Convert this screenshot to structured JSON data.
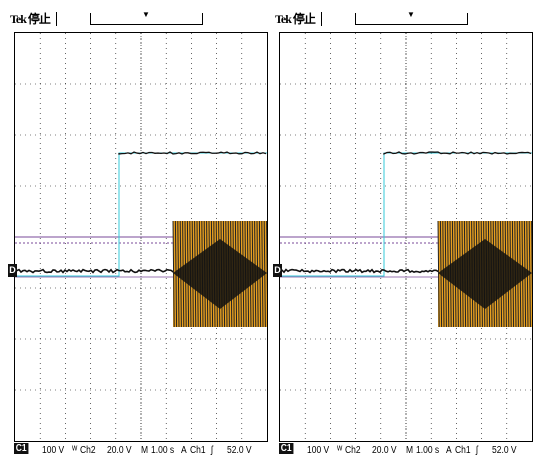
{
  "scopes": [
    {
      "brand": "Tek 停止",
      "channel_tag": "C1",
      "ch1_scale": "100 V",
      "ch2_label": "Ch2",
      "ch2_scale": "20.0 V",
      "timebase_label": "M",
      "timebase": "1.00 s",
      "trigger_src_label": "A",
      "trigger_channel": "Ch1",
      "trigger_slope": "ʃ",
      "trigger_level": "52.0 V",
      "ground_marker": "D"
    },
    {
      "brand": "Tek 停止",
      "channel_tag": "C1",
      "ch1_scale": "100 V",
      "ch2_label": "Ch2",
      "ch2_scale": "20.0 V",
      "timebase_label": "M",
      "timebase": "1.00 s",
      "trigger_src_label": "A",
      "trigger_channel": "Ch1",
      "trigger_slope": "ʃ",
      "trigger_level": "52.0 V",
      "ground_marker": "D"
    }
  ],
  "colors": {
    "trace_black": "#111111",
    "trace_orange": "#e8a020",
    "trace_cyan": "#30c8d8",
    "trace_purple": "#7a4a9a"
  }
}
